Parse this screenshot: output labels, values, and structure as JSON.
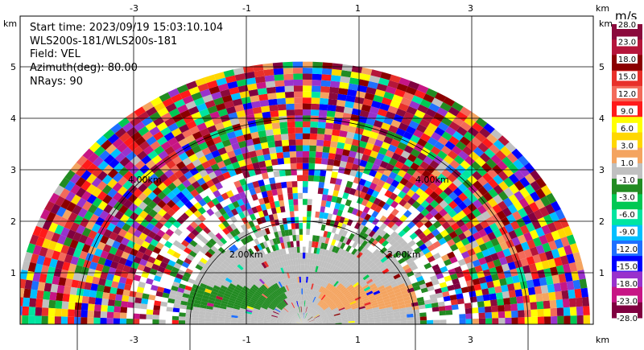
{
  "info": {
    "start_time": "Start time: 2023/09/19 15:03:10.104",
    "site": "WLS200s-181/WLS200s-181",
    "field": "Field: VEL",
    "azimuth": "Azimuth(deg): 80.00",
    "nrays": "NRays: 90"
  },
  "axes": {
    "unit_label": "km",
    "x_ticks": [
      "-3",
      "-1",
      "1",
      "3"
    ],
    "y_ticks": [
      "1",
      "2",
      "3",
      "4",
      "5"
    ]
  },
  "rings": [
    "2.00km",
    "2.00km",
    "4.00km",
    "4.00km"
  ],
  "colorbar": {
    "unit": "m/s",
    "labels": [
      "28.0",
      "23.0",
      "18.0",
      "15.0",
      "12.0",
      "9.0",
      "6.0",
      "3.0",
      "1.0",
      "-1.0",
      "-3.0",
      "-6.0",
      "-9.0",
      "-12.0",
      "-15.0",
      "-18.0",
      "-23.0",
      "-28.0"
    ],
    "colors": [
      "#8b0a3c",
      "#b5153a",
      "#8b0000",
      "#e8302a",
      "#f36a5a",
      "#ff1a1a",
      "#ffff00",
      "#ffd700",
      "#f4a460",
      "#c0c0c0",
      "#228b22",
      "#00c853",
      "#00e5a0",
      "#00bfff",
      "#1e6fff",
      "#0000ff",
      "#9932cc",
      "#c71585",
      "#800040"
    ]
  },
  "chart_data": {
    "type": "heatmap",
    "description_field": "VEL",
    "range_rings_km": [
      2,
      4
    ],
    "x_range_km": [
      -5,
      5
    ],
    "y_range_km": [
      0,
      6
    ],
    "azimuth_deg": 80.0,
    "nrays": 90
  }
}
